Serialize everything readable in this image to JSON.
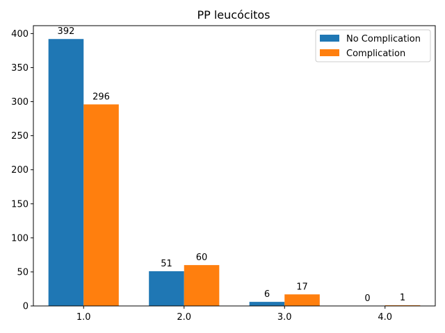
{
  "chart_data": {
    "type": "bar",
    "title": "PP leucócitos",
    "xlabel": "",
    "ylabel": "",
    "categories": [
      "1.0",
      "2.0",
      "3.0",
      "4.0"
    ],
    "series": [
      {
        "name": "No Complication",
        "values": [
          392,
          51,
          6,
          0
        ],
        "color": "#1f77b4"
      },
      {
        "name": "Complication",
        "values": [
          296,
          60,
          17,
          1
        ],
        "color": "#ff7f0e"
      }
    ],
    "ylim": [
      0,
      411.6
    ],
    "yticks": [
      0,
      50,
      100,
      150,
      200,
      250,
      300,
      350,
      400
    ],
    "grid": false,
    "legend_position": "top-right"
  }
}
